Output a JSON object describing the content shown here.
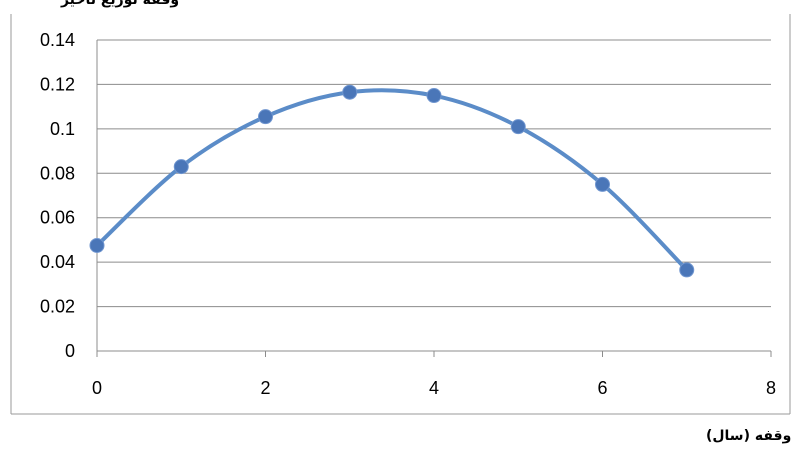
{
  "chart_data": {
    "type": "line",
    "smooth": true,
    "title": "",
    "xlabel": "وقفه (سال)",
    "ylabel": "",
    "xlim": [
      0,
      8
    ],
    "ylim": [
      0,
      0.14
    ],
    "x_ticks": [
      "0",
      "2",
      "4",
      "6",
      "8"
    ],
    "y_ticks": [
      "0",
      "0.02",
      "0.04",
      "0.06",
      "0.08",
      "0.1",
      "0.12",
      "0.14"
    ],
    "grid": "horizontal",
    "series": [
      {
        "x": [
          0,
          1,
          2,
          3,
          4,
          5,
          6,
          7
        ],
        "y": [
          0.0475,
          0.083,
          0.1055,
          0.1165,
          0.115,
          0.101,
          0.075,
          0.0365
        ],
        "color": "#5b8cc8",
        "marker_color": "#4a76b8"
      }
    ]
  }
}
